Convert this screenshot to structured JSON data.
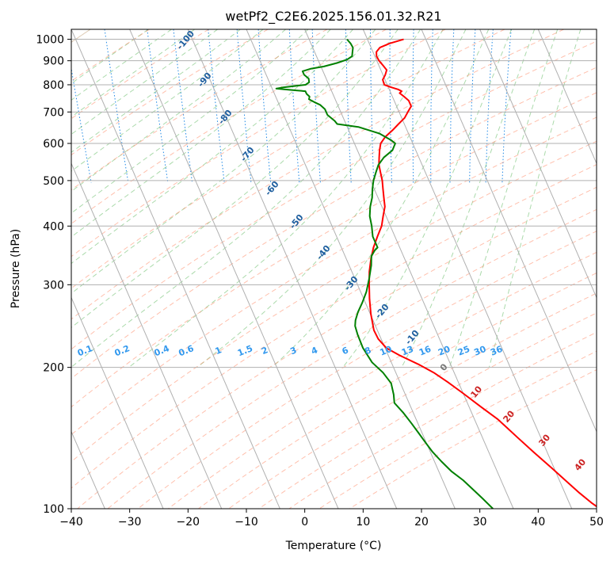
{
  "chart_data": {
    "type": "line",
    "title": "wetPf2_C2E6.2025.156.01.32.R21",
    "xlabel": "Temperature (°C)",
    "ylabel": "Pressure (hPa)",
    "xlim": [
      -40,
      50
    ],
    "ylim": [
      1050,
      100
    ],
    "y_scale": "log",
    "grid": true,
    "x_ticks": [
      -40,
      -30,
      -20,
      -10,
      0,
      10,
      20,
      30,
      40,
      50
    ],
    "y_ticks": [
      100,
      200,
      300,
      400,
      500,
      600,
      700,
      800,
      900,
      1000
    ],
    "series": [
      {
        "role": "temperature",
        "color": "#ff0000",
        "points": [
          [
            16.2,
            1000
          ],
          [
            13.5,
            980
          ],
          [
            11.5,
            960
          ],
          [
            10.6,
            940
          ],
          [
            10.3,
            920
          ],
          [
            10.4,
            900
          ],
          [
            10.7,
            880
          ],
          [
            11,
            860
          ],
          [
            10.4,
            840
          ],
          [
            9.6,
            820
          ],
          [
            9.5,
            800
          ],
          [
            10.5,
            790
          ],
          [
            11.5,
            782
          ],
          [
            12,
            775
          ],
          [
            11.5,
            768
          ],
          [
            12,
            755
          ],
          [
            12.5,
            740
          ],
          [
            12.5,
            720
          ],
          [
            11.5,
            700
          ],
          [
            10.5,
            680
          ],
          [
            9,
            660
          ],
          [
            7.5,
            640
          ],
          [
            5.8,
            620
          ],
          [
            4.5,
            600
          ],
          [
            3.8,
            580
          ],
          [
            3.2,
            560
          ],
          [
            2.6,
            540
          ],
          [
            2.3,
            520
          ],
          [
            2,
            500
          ],
          [
            1.5,
            480
          ],
          [
            1,
            460
          ],
          [
            0.5,
            440
          ],
          [
            -0.5,
            420
          ],
          [
            -1.5,
            400
          ],
          [
            -3,
            380
          ],
          [
            -4.5,
            360
          ],
          [
            -5.8,
            340
          ],
          [
            -7,
            320
          ],
          [
            -8,
            300
          ],
          [
            -9,
            280
          ],
          [
            -9.9,
            260
          ],
          [
            -10.6,
            240
          ],
          [
            -10.5,
            230
          ],
          [
            -9.8,
            220
          ],
          [
            -8,
            212
          ],
          [
            -5.5,
            203
          ],
          [
            -3.5,
            195
          ],
          [
            -1.8,
            186
          ],
          [
            0,
            176
          ],
          [
            2,
            165
          ],
          [
            4,
            155
          ],
          [
            6,
            142
          ],
          [
            7.7,
            132
          ],
          [
            9.6,
            122
          ],
          [
            11.2,
            114
          ],
          [
            12.5,
            108
          ],
          [
            13.8,
            103
          ],
          [
            14.8,
            100
          ]
        ]
      },
      {
        "role": "dewpoint",
        "color": "#008000",
        "points": [
          [
            6.5,
            1000
          ],
          [
            6.8,
            980
          ],
          [
            6.9,
            960
          ],
          [
            6.5,
            940
          ],
          [
            6.1,
            920
          ],
          [
            5,
            905
          ],
          [
            3,
            890
          ],
          [
            0.5,
            875
          ],
          [
            -2,
            865
          ],
          [
            -3.5,
            855
          ],
          [
            -3.5,
            840
          ],
          [
            -3,
            825
          ],
          [
            -3.2,
            810
          ],
          [
            -4,
            800
          ],
          [
            -6,
            795
          ],
          [
            -8,
            790
          ],
          [
            -9.3,
            785
          ],
          [
            -8,
            782
          ],
          [
            -6,
            778
          ],
          [
            -4.5,
            775
          ],
          [
            -4.5,
            765
          ],
          [
            -4.2,
            755
          ],
          [
            -4.5,
            745
          ],
          [
            -3.8,
            735
          ],
          [
            -3,
            725
          ],
          [
            -2.5,
            710
          ],
          [
            -2.5,
            690
          ],
          [
            -1.7,
            670
          ],
          [
            -1.5,
            660
          ],
          [
            2,
            650
          ],
          [
            5,
            630
          ],
          [
            6.5,
            610
          ],
          [
            7,
            600
          ],
          [
            6,
            580
          ],
          [
            4,
            560
          ],
          [
            2.5,
            540
          ],
          [
            1.5,
            520
          ],
          [
            0.5,
            500
          ],
          [
            -0.3,
            480
          ],
          [
            -1,
            460
          ],
          [
            -2,
            440
          ],
          [
            -2.8,
            420
          ],
          [
            -3.2,
            400
          ],
          [
            -3.8,
            380
          ],
          [
            -3.8,
            360
          ],
          [
            -4.5,
            355
          ],
          [
            -5.5,
            345
          ],
          [
            -6.2,
            330
          ],
          [
            -7.5,
            310
          ],
          [
            -9,
            290
          ],
          [
            -10.5,
            275
          ],
          [
            -12,
            262
          ],
          [
            -13,
            252
          ],
          [
            -13.5,
            245
          ],
          [
            -13.7,
            235
          ],
          [
            -13.8,
            220
          ],
          [
            -13.3,
            205
          ],
          [
            -12.2,
            195
          ],
          [
            -11.6,
            185
          ],
          [
            -12,
            175
          ],
          [
            -12.5,
            168
          ],
          [
            -11.7,
            160
          ],
          [
            -11.1,
            152
          ],
          [
            -10.6,
            145
          ],
          [
            -10.1,
            138
          ],
          [
            -9.6,
            132
          ],
          [
            -8.8,
            126
          ],
          [
            -7.8,
            120
          ],
          [
            -6.5,
            115
          ],
          [
            -5.5,
            110
          ],
          [
            -4.5,
            105
          ],
          [
            -3.5,
            100
          ]
        ]
      }
    ],
    "dry_adiabat_labels": [
      "-100",
      "-90",
      "-80",
      "-70",
      "-60",
      "-50",
      "-40",
      "-30",
      "-20",
      "-10"
    ],
    "moist_adiabat_labels": [
      "0",
      "10",
      "20",
      "30",
      "40"
    ],
    "mixing_ratio_labels": [
      "0.1",
      "0.2",
      "0.4",
      "0.6",
      "1",
      "1.5",
      "2",
      "3",
      "4",
      "6",
      "8",
      "10",
      "13",
      "16",
      "20",
      "25",
      "30",
      "36"
    ],
    "mixing_ratio_values": [
      0.1,
      0.2,
      0.4,
      0.6,
      1,
      1.5,
      2,
      3,
      4,
      6,
      8,
      10,
      13,
      16,
      20,
      25,
      30,
      36
    ],
    "colors": {
      "temperature": "#ff0000",
      "dewpoint": "#008000",
      "isotherm": "#b0b0b0",
      "dry_adiabat": "#ff8c69",
      "moist_adiabat": "#66bb66",
      "mixing_ratio": "#1e88e5",
      "dry_label": "#1f5f9f",
      "moist_label": "#cc2222"
    }
  }
}
